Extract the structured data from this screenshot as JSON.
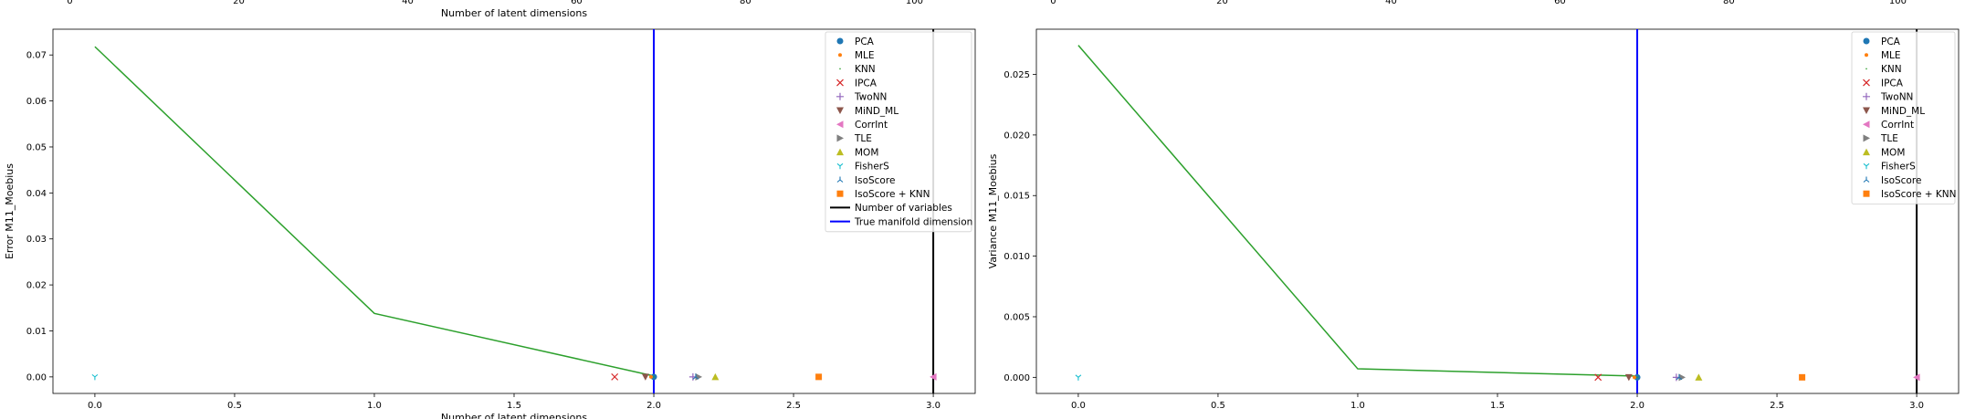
{
  "charts": [
    {
      "id": "error",
      "type": "line",
      "top_xlabel": "Number of latent dimensions",
      "xlabel": "Number of latent dimensions",
      "ylabel": "Error M11_Moebius",
      "xlim": [
        -0.15,
        3.15
      ],
      "ylim": [
        -0.0036,
        0.0756
      ],
      "xticks": [
        0.0,
        0.5,
        1.0,
        1.5,
        2.0,
        2.5,
        3.0
      ],
      "xtick_labels": [
        "0.0",
        "0.5",
        "1.0",
        "1.5",
        "2.0",
        "2.5",
        "3.0"
      ],
      "yticks": [
        0.0,
        0.01,
        0.02,
        0.03,
        0.04,
        0.05,
        0.06,
        0.07
      ],
      "ytick_labels": [
        "0.00",
        "0.01",
        "0.02",
        "0.03",
        "0.04",
        "0.05",
        "0.06",
        "0.07"
      ],
      "top_ticks": [
        0,
        20,
        40,
        60,
        80,
        100
      ],
      "top_xlim": [
        -2.0,
        107.2
      ],
      "top_tick_labels": [
        "0",
        "20",
        "40",
        "60",
        "80",
        "100"
      ],
      "line": {
        "color": "#2ca02c",
        "x": [
          0,
          1,
          2
        ],
        "y": [
          0.0718,
          0.0138,
          0.0002
        ]
      },
      "vlines": [
        {
          "name": "Number of variables",
          "x": 3,
          "color": "#000000"
        },
        {
          "name": "True manifold dimension",
          "x": 2,
          "color": "#0000ff"
        }
      ],
      "points": [
        {
          "name": "PCA",
          "x": 2.0,
          "y": 0.0,
          "marker": "circle",
          "color": "#1f77b4"
        },
        {
          "name": "MLE",
          "x": 1.99,
          "y": 0.0,
          "marker": "point",
          "color": "#ff7f0e"
        },
        {
          "name": "KNN",
          "x": 2.0,
          "y": 0.0,
          "marker": "pixel",
          "color": "#2ca02c"
        },
        {
          "name": "IPCA",
          "x": 1.86,
          "y": 0.0,
          "marker": "x",
          "color": "#d62728"
        },
        {
          "name": "TwoNN",
          "x": 2.14,
          "y": 0.0,
          "marker": "plus",
          "color": "#9467bd"
        },
        {
          "name": "MiND_ML",
          "x": 1.97,
          "y": 0.0,
          "marker": "tri_down",
          "color": "#8c564b"
        },
        {
          "name": "CorrInt",
          "x": 3.0,
          "y": 0.0,
          "marker": "tri_left",
          "color": "#e377c2"
        },
        {
          "name": "TLE",
          "x": 2.16,
          "y": 0.0,
          "marker": "tri_right",
          "color": "#7f7f7f"
        },
        {
          "name": "MOM",
          "x": 2.22,
          "y": 0.0,
          "marker": "tri_up",
          "color": "#bcbd22"
        },
        {
          "name": "FisherS",
          "x": 0.0,
          "y": 0.0,
          "marker": "y1",
          "color": "#17becf"
        },
        {
          "name": "IsoScore",
          "x": 2.15,
          "y": 0.0,
          "marker": "y3",
          "color": "#1f77b4"
        },
        {
          "name": "IsoScore + KNN",
          "x": 2.59,
          "y": 0.0,
          "marker": "square",
          "color": "#ff7f0e"
        }
      ],
      "legend": {
        "position": "top-right",
        "entries": [
          {
            "label": "PCA",
            "marker": "circle",
            "color": "#1f77b4"
          },
          {
            "label": "MLE",
            "marker": "point",
            "color": "#ff7f0e"
          },
          {
            "label": "KNN",
            "marker": "pixel",
            "color": "#2ca02c"
          },
          {
            "label": "IPCA",
            "marker": "x",
            "color": "#d62728"
          },
          {
            "label": "TwoNN",
            "marker": "plus",
            "color": "#9467bd"
          },
          {
            "label": "MiND_ML",
            "marker": "tri_down",
            "color": "#8c564b"
          },
          {
            "label": "CorrInt",
            "marker": "tri_left",
            "color": "#e377c2"
          },
          {
            "label": "TLE",
            "marker": "tri_right",
            "color": "#7f7f7f"
          },
          {
            "label": "MOM",
            "marker": "tri_up",
            "color": "#bcbd22"
          },
          {
            "label": "FisherS",
            "marker": "y1",
            "color": "#17becf"
          },
          {
            "label": "IsoScore",
            "marker": "y3",
            "color": "#1f77b4"
          },
          {
            "label": "IsoScore + KNN",
            "marker": "square",
            "color": "#ff7f0e"
          },
          {
            "label": "Number of variables",
            "marker": "line",
            "color": "#000000"
          },
          {
            "label": "True manifold dimension",
            "marker": "line",
            "color": "#0000ff"
          }
        ]
      }
    },
    {
      "id": "variance",
      "type": "line",
      "top_xlabel": "",
      "xlabel": "",
      "ylabel": "Variance M11_Moebius",
      "xlim": [
        -0.15,
        3.15
      ],
      "ylim": [
        -0.00133,
        0.02873
      ],
      "xticks": [
        0.0,
        0.5,
        1.0,
        1.5,
        2.0,
        2.5,
        3.0
      ],
      "xtick_labels": [
        "0.0",
        "0.5",
        "1.0",
        "1.5",
        "2.0",
        "2.5",
        "3.0"
      ],
      "yticks": [
        0.0,
        0.005,
        0.01,
        0.015,
        0.02,
        0.025
      ],
      "ytick_labels": [
        "0.000",
        "0.005",
        "0.010",
        "0.015",
        "0.020",
        "0.025"
      ],
      "top_ticks": [
        0,
        20,
        40,
        60,
        80,
        100
      ],
      "top_xlim": [
        -2.0,
        107.2
      ],
      "top_tick_labels": [
        "0",
        "20",
        "40",
        "60",
        "80",
        "100"
      ],
      "line": {
        "color": "#2ca02c",
        "x": [
          0,
          1,
          2
        ],
        "y": [
          0.0274,
          0.0007,
          0.0001
        ]
      },
      "vlines": [
        {
          "name": "Number of variables",
          "x": 3,
          "color": "#000000"
        },
        {
          "name": "True manifold dimension",
          "x": 2,
          "color": "#0000ff"
        }
      ],
      "points": [
        {
          "name": "PCA",
          "x": 2.0,
          "y": 0.0,
          "marker": "circle",
          "color": "#1f77b4"
        },
        {
          "name": "MLE",
          "x": 1.99,
          "y": 0.0,
          "marker": "point",
          "color": "#ff7f0e"
        },
        {
          "name": "KNN",
          "x": 2.0,
          "y": 0.0,
          "marker": "pixel",
          "color": "#2ca02c"
        },
        {
          "name": "IPCA",
          "x": 1.86,
          "y": 0.0,
          "marker": "x",
          "color": "#d62728"
        },
        {
          "name": "TwoNN",
          "x": 2.14,
          "y": 0.0,
          "marker": "plus",
          "color": "#9467bd"
        },
        {
          "name": "MiND_ML",
          "x": 1.97,
          "y": 0.0,
          "marker": "tri_down",
          "color": "#8c564b"
        },
        {
          "name": "CorrInt",
          "x": 3.0,
          "y": 0.0,
          "marker": "tri_left",
          "color": "#e377c2"
        },
        {
          "name": "TLE",
          "x": 2.16,
          "y": 0.0,
          "marker": "tri_right",
          "color": "#7f7f7f"
        },
        {
          "name": "MOM",
          "x": 2.22,
          "y": 0.0,
          "marker": "tri_up",
          "color": "#bcbd22"
        },
        {
          "name": "FisherS",
          "x": 0.0,
          "y": 0.0,
          "marker": "y1",
          "color": "#17becf"
        },
        {
          "name": "IsoScore",
          "x": 2.15,
          "y": 0.0,
          "marker": "y3",
          "color": "#1f77b4"
        },
        {
          "name": "IsoScore + KNN",
          "x": 2.59,
          "y": 0.0,
          "marker": "square",
          "color": "#ff7f0e"
        }
      ],
      "legend": {
        "position": "top-right",
        "entries": [
          {
            "label": "PCA",
            "marker": "circle",
            "color": "#1f77b4"
          },
          {
            "label": "MLE",
            "marker": "point",
            "color": "#ff7f0e"
          },
          {
            "label": "KNN",
            "marker": "pixel",
            "color": "#2ca02c"
          },
          {
            "label": "IPCA",
            "marker": "x",
            "color": "#d62728"
          },
          {
            "label": "TwoNN",
            "marker": "plus",
            "color": "#9467bd"
          },
          {
            "label": "MiND_ML",
            "marker": "tri_down",
            "color": "#8c564b"
          },
          {
            "label": "CorrInt",
            "marker": "tri_left",
            "color": "#e377c2"
          },
          {
            "label": "TLE",
            "marker": "tri_right",
            "color": "#7f7f7f"
          },
          {
            "label": "MOM",
            "marker": "tri_up",
            "color": "#bcbd22"
          },
          {
            "label": "FisherS",
            "marker": "y1",
            "color": "#17becf"
          },
          {
            "label": "IsoScore",
            "marker": "y3",
            "color": "#1f77b4"
          },
          {
            "label": "IsoScore + KNN",
            "marker": "square",
            "color": "#ff7f0e"
          }
        ]
      }
    }
  ]
}
